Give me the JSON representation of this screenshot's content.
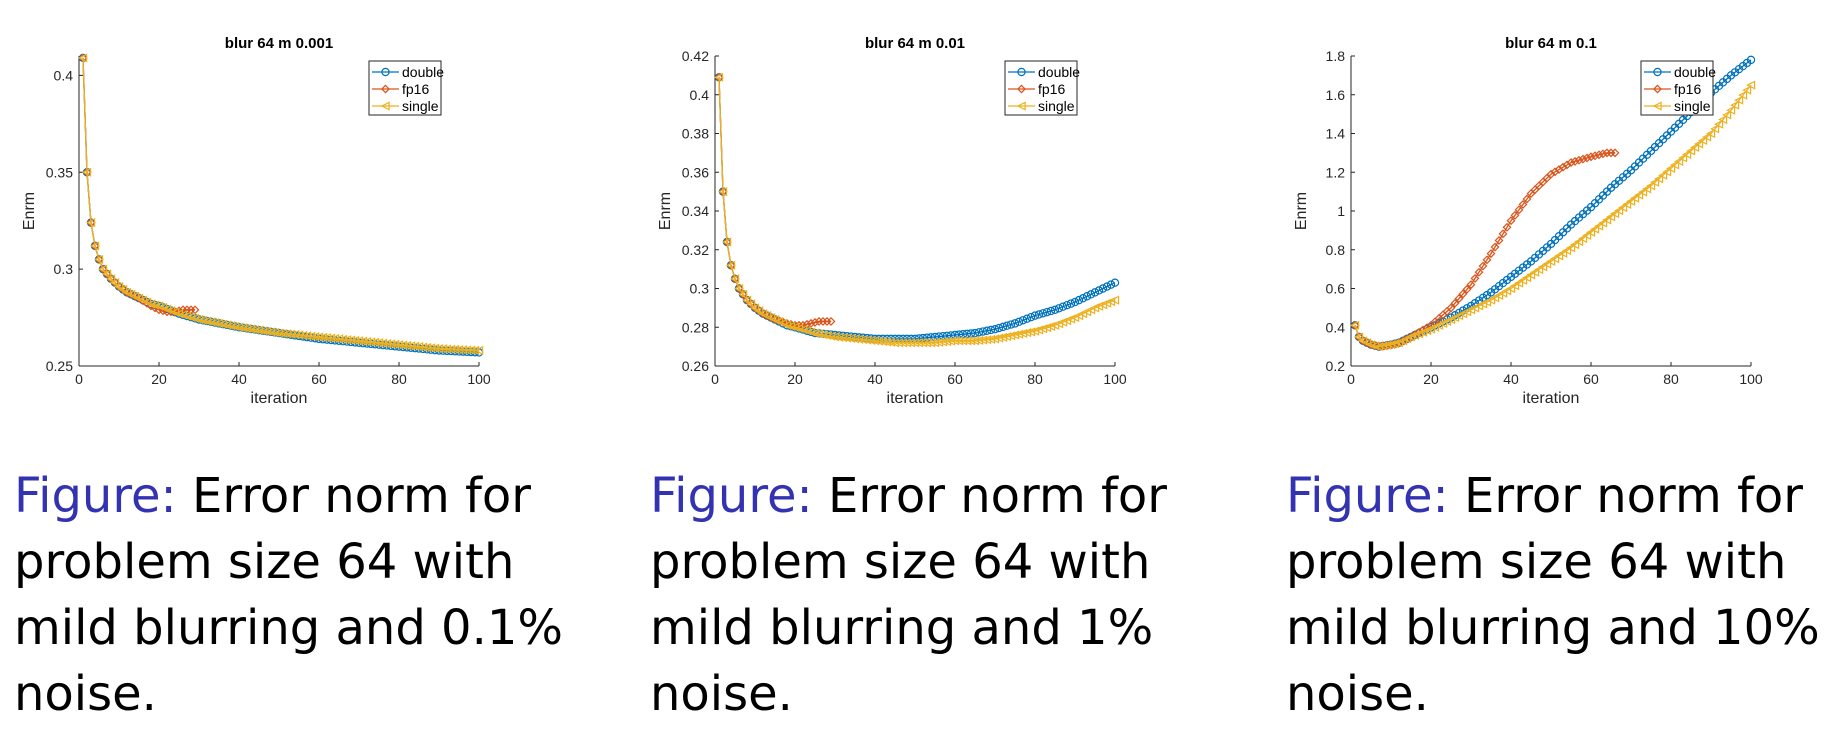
{
  "colors": {
    "double": "#0072bd",
    "fp16": "#d95319",
    "single": "#edb120",
    "caption_label": "#3333b2"
  },
  "figures": [
    {
      "caption": {
        "label": "Figure:",
        "text": "Error norm for problem size 64 with mild blurring and 0.1% noise."
      },
      "chart_data": {
        "type": "line",
        "title": "blur 64 m 0.001",
        "xlabel": "iteration",
        "ylabel": "Enrm",
        "xlim": [
          0,
          100
        ],
        "ylim": [
          0.25,
          0.41
        ],
        "xticks": [
          0,
          20,
          40,
          60,
          80,
          100
        ],
        "yticks": [
          0.25,
          0.3,
          0.35,
          0.4
        ],
        "ytick_labels": [
          "0.25",
          "0.3",
          "0.35",
          "0.4"
        ],
        "grid": false,
        "legend": "top-right",
        "series": [
          {
            "name": "double",
            "marker": "circle",
            "x": [
              1,
              2,
              3,
              4,
              5,
              6,
              8,
              10,
              12,
              15,
              18,
              20,
              25,
              30,
              40,
              50,
              60,
              70,
              80,
              90,
              100
            ],
            "y": [
              0.409,
              0.35,
              0.324,
              0.312,
              0.305,
              0.3,
              0.295,
              0.291,
              0.288,
              0.285,
              0.282,
              0.281,
              0.277,
              0.274,
              0.27,
              0.267,
              0.264,
              0.262,
              0.26,
              0.258,
              0.257
            ]
          },
          {
            "name": "fp16",
            "marker": "diamond",
            "x": [
              1,
              2,
              3,
              4,
              5,
              6,
              8,
              10,
              12,
              15,
              18,
              20,
              22,
              24,
              26,
              28,
              29
            ],
            "y": [
              0.409,
              0.35,
              0.324,
              0.312,
              0.305,
              0.3,
              0.295,
              0.291,
              0.288,
              0.285,
              0.281,
              0.279,
              0.278,
              0.278,
              0.279,
              0.279,
              0.279
            ]
          },
          {
            "name": "single",
            "marker": "triangle-left",
            "x": [
              1,
              2,
              3,
              4,
              5,
              6,
              8,
              10,
              12,
              15,
              18,
              20,
              25,
              30,
              40,
              50,
              60,
              70,
              80,
              90,
              100
            ],
            "y": [
              0.409,
              0.35,
              0.324,
              0.312,
              0.305,
              0.3,
              0.295,
              0.291,
              0.288,
              0.285,
              0.282,
              0.281,
              0.277,
              0.274,
              0.27,
              0.267,
              0.265,
              0.263,
              0.261,
              0.259,
              0.258
            ]
          }
        ]
      }
    },
    {
      "caption": {
        "label": "Figure:",
        "text": "Error norm for problem size 64 with mild blurring and 1% noise."
      },
      "chart_data": {
        "type": "line",
        "title": "blur 64 m 0.01",
        "xlabel": "iteration",
        "ylabel": "Enrm",
        "xlim": [
          0,
          100
        ],
        "ylim": [
          0.26,
          0.42
        ],
        "xticks": [
          0,
          20,
          40,
          60,
          80,
          100
        ],
        "yticks": [
          0.26,
          0.28,
          0.3,
          0.32,
          0.34,
          0.36,
          0.38,
          0.4,
          0.42
        ],
        "ytick_labels": [
          "0.26",
          "0.28",
          "0.3",
          "0.32",
          "0.34",
          "0.36",
          "0.38",
          "0.4",
          "0.42"
        ],
        "grid": false,
        "legend": "top-right",
        "series": [
          {
            "name": "double",
            "marker": "circle",
            "x": [
              1,
              2,
              3,
              4,
              5,
              6,
              8,
              10,
              12,
              15,
              18,
              20,
              25,
              30,
              35,
              40,
              45,
              50,
              55,
              60,
              65,
              70,
              75,
              80,
              85,
              90,
              95,
              100
            ],
            "y": [
              0.409,
              0.35,
              0.324,
              0.312,
              0.305,
              0.3,
              0.294,
              0.29,
              0.287,
              0.284,
              0.281,
              0.28,
              0.277,
              0.276,
              0.275,
              0.274,
              0.274,
              0.274,
              0.275,
              0.276,
              0.277,
              0.279,
              0.282,
              0.286,
              0.289,
              0.293,
              0.298,
              0.303
            ]
          },
          {
            "name": "fp16",
            "marker": "diamond",
            "x": [
              1,
              2,
              3,
              4,
              5,
              6,
              8,
              10,
              12,
              15,
              18,
              20,
              22,
              24,
              26,
              28,
              29
            ],
            "y": [
              0.409,
              0.35,
              0.324,
              0.312,
              0.305,
              0.3,
              0.294,
              0.29,
              0.287,
              0.284,
              0.282,
              0.281,
              0.281,
              0.282,
              0.283,
              0.283,
              0.283
            ]
          },
          {
            "name": "single",
            "marker": "triangle-left",
            "x": [
              1,
              2,
              3,
              4,
              5,
              6,
              8,
              10,
              12,
              15,
              18,
              20,
              25,
              30,
              35,
              40,
              45,
              50,
              55,
              60,
              65,
              70,
              75,
              80,
              85,
              90,
              95,
              100
            ],
            "y": [
              0.409,
              0.35,
              0.324,
              0.312,
              0.305,
              0.3,
              0.294,
              0.29,
              0.287,
              0.284,
              0.281,
              0.28,
              0.277,
              0.275,
              0.274,
              0.273,
              0.272,
              0.272,
              0.272,
              0.273,
              0.273,
              0.274,
              0.276,
              0.278,
              0.281,
              0.285,
              0.29,
              0.294
            ]
          }
        ]
      }
    },
    {
      "caption": {
        "label": "Figure:",
        "text": "Error norm for problem size 64 with mild blurring and 10% noise."
      },
      "chart_data": {
        "type": "line",
        "title": "blur 64 m 0.1",
        "xlabel": "iteration",
        "ylabel": "Enrm",
        "xlim": [
          0,
          100
        ],
        "ylim": [
          0.2,
          1.8
        ],
        "xticks": [
          0,
          20,
          40,
          60,
          80,
          100
        ],
        "yticks": [
          0.2,
          0.4,
          0.6,
          0.8,
          1.0,
          1.2,
          1.4,
          1.6,
          1.8
        ],
        "ytick_labels": [
          "0.2",
          "0.4",
          "0.6",
          "0.8",
          "1",
          "1.2",
          "1.4",
          "1.6",
          "1.8"
        ],
        "grid": false,
        "legend": "top-right",
        "series": [
          {
            "name": "double",
            "marker": "circle",
            "x": [
              1,
              2,
              3,
              5,
              7,
              10,
              12,
              15,
              20,
              25,
              30,
              35,
              40,
              45,
              50,
              55,
              60,
              65,
              70,
              75,
              80,
              85,
              90,
              95,
              100
            ],
            "y": [
              0.41,
              0.35,
              0.33,
              0.31,
              0.3,
              0.31,
              0.32,
              0.35,
              0.4,
              0.45,
              0.51,
              0.58,
              0.66,
              0.74,
              0.83,
              0.93,
              1.02,
              1.12,
              1.21,
              1.31,
              1.41,
              1.51,
              1.61,
              1.7,
              1.78
            ]
          },
          {
            "name": "fp16",
            "marker": "diamond",
            "x": [
              1,
              2,
              3,
              5,
              7,
              10,
              12,
              15,
              20,
              25,
              30,
              35,
              40,
              45,
              50,
              55,
              60,
              62,
              64,
              66
            ],
            "y": [
              0.41,
              0.35,
              0.33,
              0.31,
              0.3,
              0.31,
              0.32,
              0.35,
              0.41,
              0.5,
              0.62,
              0.78,
              0.95,
              1.09,
              1.19,
              1.25,
              1.28,
              1.29,
              1.3,
              1.3
            ]
          },
          {
            "name": "single",
            "marker": "triangle-left",
            "x": [
              1,
              2,
              3,
              5,
              7,
              10,
              12,
              15,
              20,
              25,
              30,
              35,
              40,
              45,
              50,
              55,
              60,
              65,
              70,
              75,
              80,
              85,
              90,
              95,
              100
            ],
            "y": [
              0.41,
              0.35,
              0.33,
              0.31,
              0.3,
              0.31,
              0.32,
              0.35,
              0.39,
              0.44,
              0.49,
              0.54,
              0.6,
              0.67,
              0.74,
              0.81,
              0.89,
              0.97,
              1.05,
              1.13,
              1.22,
              1.31,
              1.4,
              1.52,
              1.65
            ]
          }
        ]
      }
    }
  ]
}
